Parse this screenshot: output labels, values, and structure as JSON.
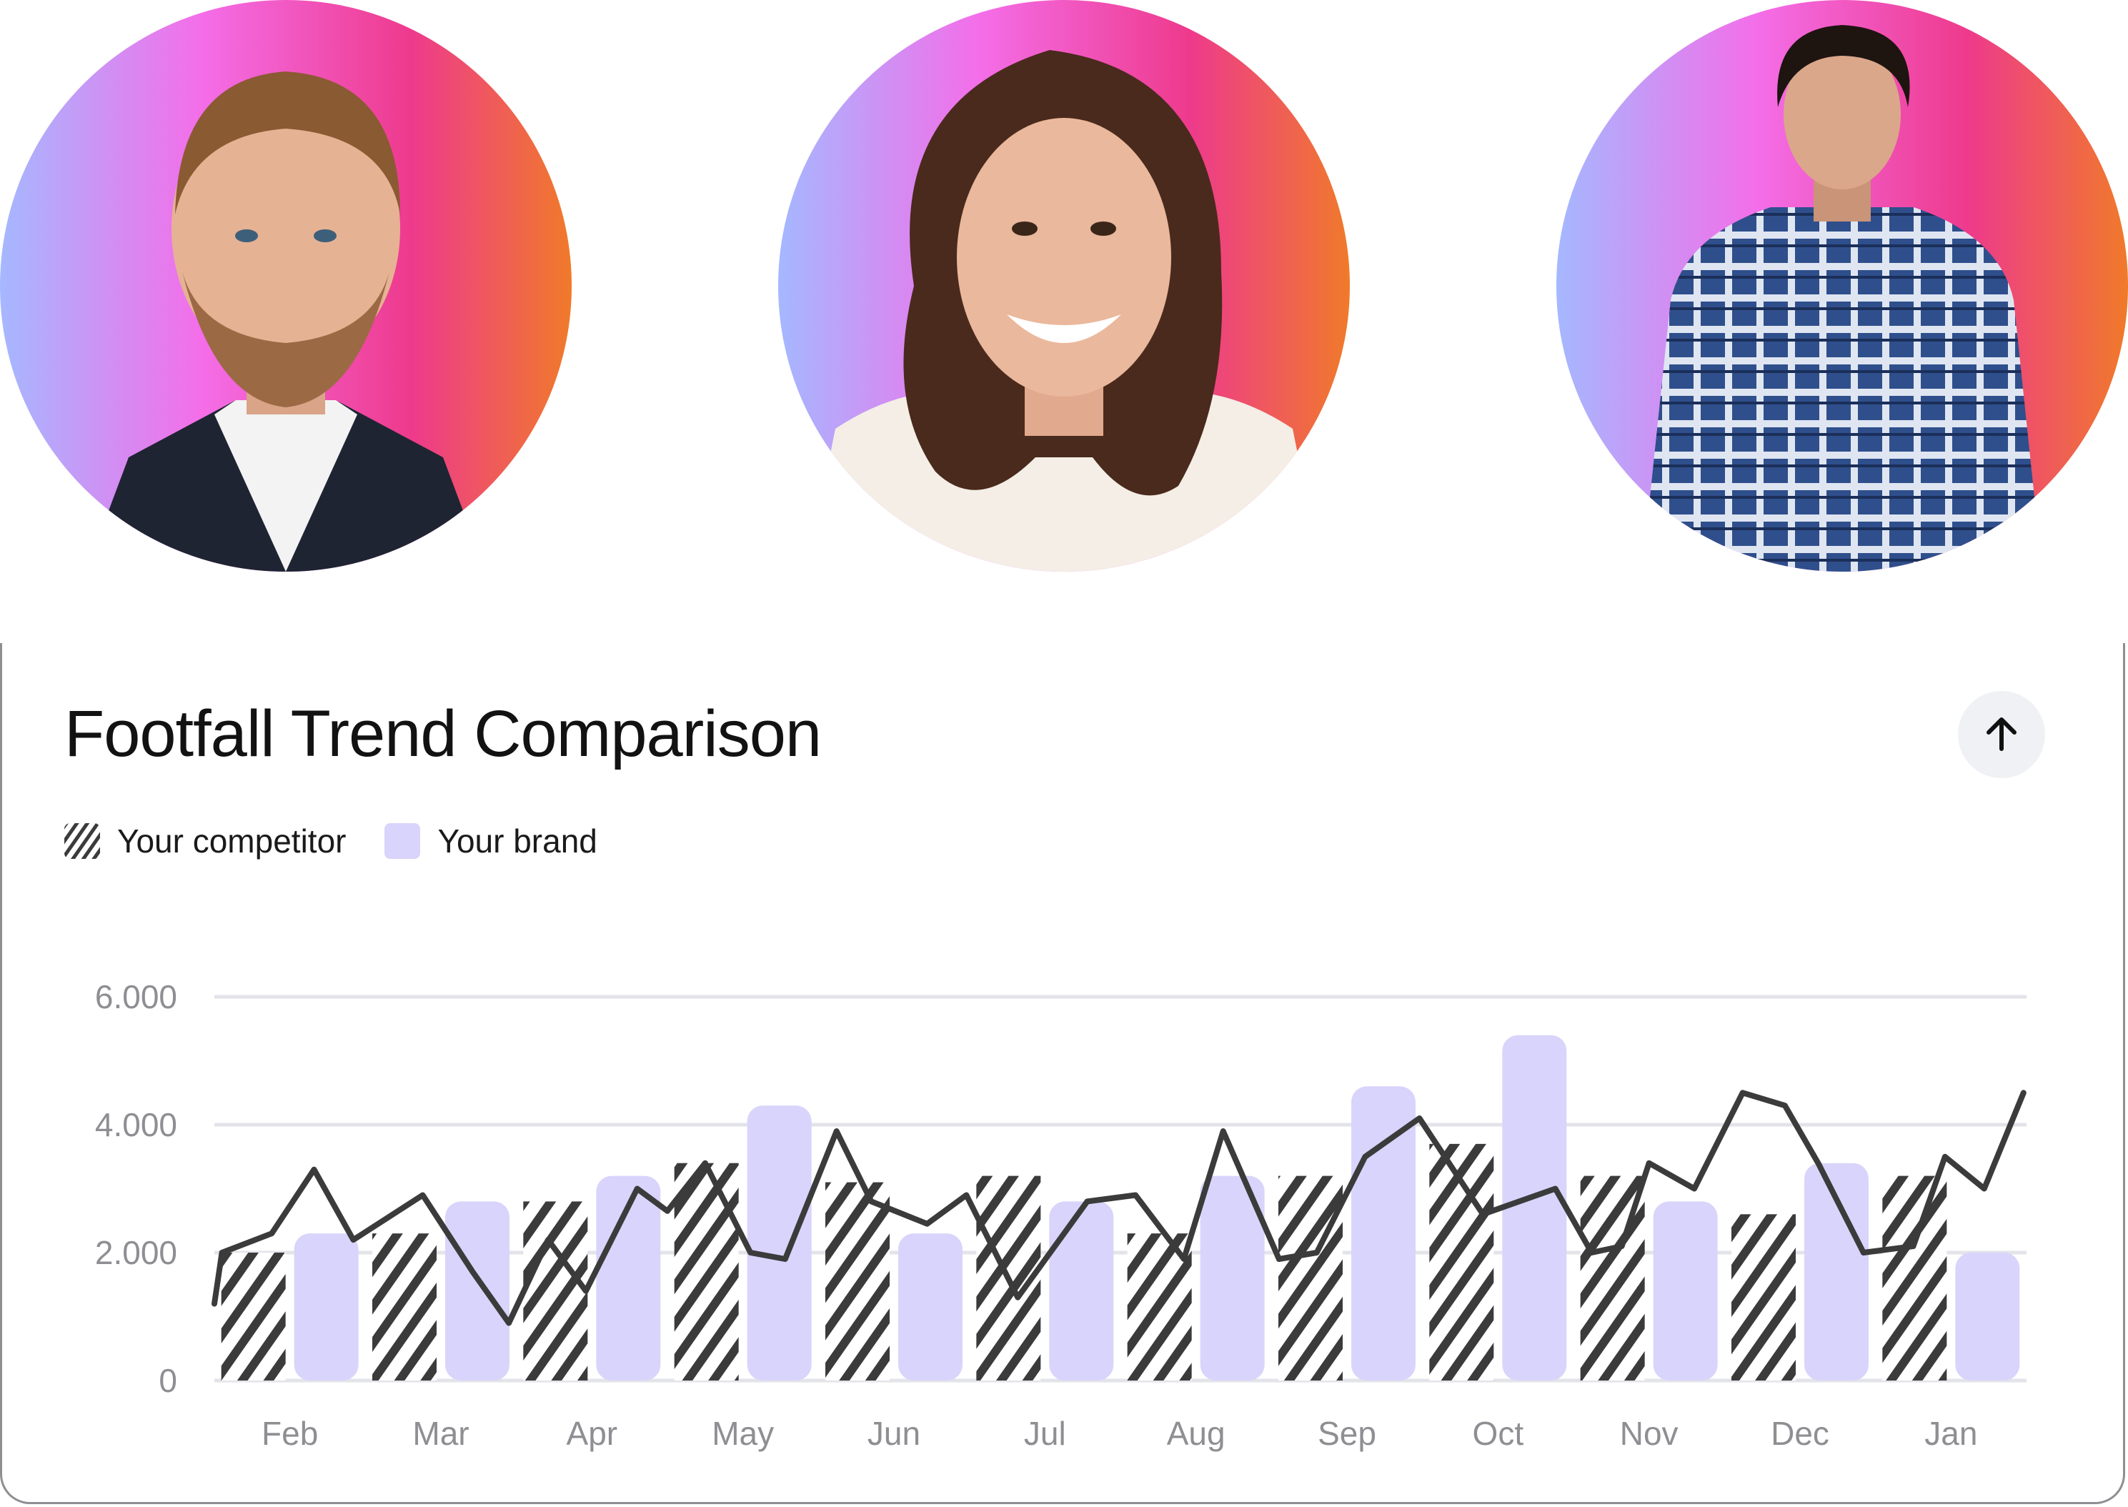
{
  "avatars": [
    {
      "name": "avatar-man-suit"
    },
    {
      "name": "avatar-woman-smiling"
    },
    {
      "name": "avatar-man-plaid-shirt"
    }
  ],
  "colors": {
    "brand_bar": "#d9d4fb",
    "competitor": "#3b3b3b",
    "grid": "#e3e3ea",
    "axis_text": "#8e8e93",
    "avatar_gradient": [
      "#a5b8ff",
      "#f46ee9",
      "#ee3a8c",
      "#f07a2a"
    ]
  },
  "title": "Footfall Trend Comparison",
  "up_button_icon": "arrow-up-icon",
  "legend": {
    "competitor": "Your competitor",
    "brand": "Your brand"
  },
  "chart_data": {
    "type": "bar",
    "title": "Footfall Trend Comparison",
    "categories": [
      "Feb",
      "Mar",
      "Apr",
      "May",
      "Jun",
      "Jul",
      "Aug",
      "Sep",
      "Oct",
      "Nov",
      "Dec",
      "Jan"
    ],
    "y_ticks": [
      "0",
      "2.000",
      "4.000",
      "6.000"
    ],
    "ylim": [
      0,
      6000
    ],
    "grid": true,
    "legend_position": "top-left",
    "series": [
      {
        "name": "Your competitor",
        "style": "hatched",
        "values": [
          2000,
          2300,
          2800,
          3400,
          3100,
          3200,
          2300,
          3200,
          3700,
          3200,
          2600,
          3200
        ]
      },
      {
        "name": "Your brand",
        "style": "solid",
        "values": [
          2300,
          2800,
          3200,
          4300,
          2300,
          2800,
          3200,
          4600,
          5400,
          2800,
          3400,
          2000
        ]
      }
    ],
    "trend_line": {
      "type": "line",
      "x_range": [
        0,
        12
      ],
      "x": [
        0,
        0.05,
        0.38,
        0.66,
        0.92,
        1.38,
        1.71,
        1.95,
        2.21,
        2.46,
        2.8,
        3.0,
        3.25,
        3.55,
        3.78,
        4.12,
        4.35,
        4.72,
        4.98,
        5.32,
        5.78,
        6.1,
        6.42,
        6.68,
        7.05,
        7.3,
        7.62,
        7.98,
        8.4,
        8.88,
        9.12,
        9.32,
        9.5,
        9.8,
        10.12,
        10.4,
        10.62,
        10.92,
        11.25,
        11.46,
        11.72,
        11.98
      ],
      "y": [
        1200,
        2000,
        2300,
        3300,
        2200,
        2900,
        1700,
        900,
        2200,
        1400,
        3000,
        2650,
        3400,
        2000,
        1900,
        3900,
        2800,
        2450,
        2900,
        1300,
        2800,
        2900,
        1900,
        3900,
        1900,
        2000,
        3500,
        4100,
        2600,
        3000,
        2000,
        2100,
        3400,
        3000,
        4500,
        4300,
        3400,
        2000,
        2100,
        3500,
        3000,
        4500
      ]
    }
  }
}
